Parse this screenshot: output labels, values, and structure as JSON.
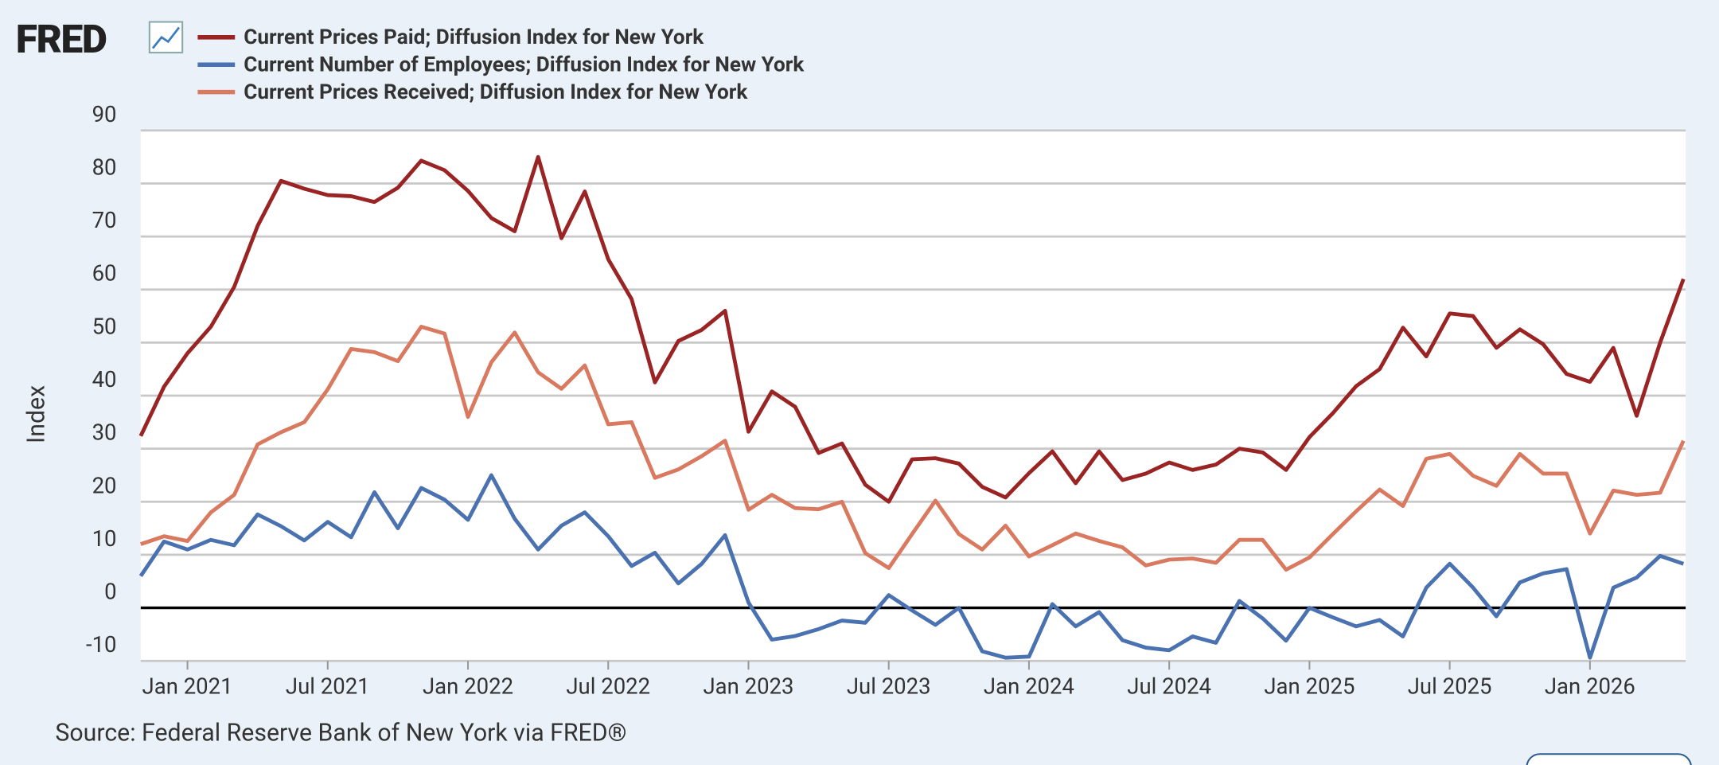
{
  "chart_data": {
    "type": "line",
    "logo": "FRED",
    "ylabel": "Index",
    "source": "Source: Federal Reserve Bank of New York via FRED®",
    "x": [
      "2020-11",
      "2020-12",
      "2021-01",
      "2021-02",
      "2021-03",
      "2021-04",
      "2021-05",
      "2021-06",
      "2021-07",
      "2021-08",
      "2021-09",
      "2021-10",
      "2021-11",
      "2021-12",
      "2022-01",
      "2022-02",
      "2022-03",
      "2022-04",
      "2022-05",
      "2022-06",
      "2022-07",
      "2022-08",
      "2022-09",
      "2022-10",
      "2022-11",
      "2022-12",
      "2023-01",
      "2023-02",
      "2023-03",
      "2023-04",
      "2023-05",
      "2023-06",
      "2023-07",
      "2023-08",
      "2023-09",
      "2023-10",
      "2023-11",
      "2023-12",
      "2024-01",
      "2024-02",
      "2024-03",
      "2024-04",
      "2024-05",
      "2024-06",
      "2024-07",
      "2024-08",
      "2024-09",
      "2024-10",
      "2024-11",
      "2024-12",
      "2025-01",
      "2025-02",
      "2025-03",
      "2025-04",
      "2025-05",
      "2025-06",
      "2025-07",
      "2025-08",
      "2025-09",
      "2025-10",
      "2025-11",
      "2025-12",
      "2026-01",
      "2026-02",
      "2026-03",
      "2026-04",
      "2026-05"
    ],
    "series": [
      {
        "name": "Current Prices Paid; Diffusion Index for New York",
        "color": "#9a2424",
        "values": [
          32.4,
          41.7,
          48,
          53,
          60.5,
          72,
          80.5,
          79,
          77.8,
          77.6,
          76.5,
          79.2,
          84.3,
          82.5,
          78.6,
          73.5,
          71,
          85,
          69.7,
          78.5,
          65.7,
          58.2,
          42.5,
          50.3,
          52.4,
          56,
          33.2,
          40.8,
          37.9,
          29.2,
          31,
          23.2,
          20,
          28,
          28.2,
          27.2,
          22.8,
          20.8,
          25.4,
          29.5,
          23.5,
          29.5,
          24.1,
          25.3,
          27.4,
          26,
          27,
          30,
          29.3,
          26,
          32.2,
          36.7,
          41.8,
          45,
          52.8,
          47.4,
          55.5,
          55,
          49,
          52.5,
          49.7,
          44.1,
          42.6,
          49,
          36.2,
          50,
          62
        ]
      },
      {
        "name": "Current Number of Employees; Diffusion Index for New York",
        "color": "#4a72b0",
        "values": [
          6,
          12.5,
          11,
          12.8,
          11.8,
          17.6,
          15.4,
          12.7,
          16.2,
          13.3,
          21.8,
          15,
          22.6,
          20.4,
          16.6,
          25,
          16.8,
          11,
          15.5,
          18,
          13.5,
          7.9,
          10.4,
          4.6,
          8.3,
          13.7,
          1,
          -6,
          -5.3,
          -4,
          -2.4,
          -2.8,
          2.4,
          -0.5,
          -3.2,
          0,
          -8.2,
          -9.4,
          -9.2,
          0.7,
          -3.5,
          -0.8,
          -6.1,
          -7.5,
          -8,
          -5.4,
          -6.6,
          1.3,
          -2,
          -6.2,
          0,
          -1.8,
          -3.5,
          -2.3,
          -5.4,
          3.8,
          8.3,
          3.8,
          -1.6,
          4.8,
          6.5,
          7.3,
          -9.4,
          3.8,
          5.7,
          9.8,
          8.3
        ]
      },
      {
        "name": "Current Prices Received; Diffusion Index for New York",
        "color": "#d9795f",
        "values": [
          12,
          13.5,
          12.6,
          18,
          21.3,
          30.8,
          33.1,
          35,
          41.2,
          48.8,
          48.2,
          46.5,
          53,
          51.7,
          36,
          46.3,
          51.9,
          44.4,
          41.3,
          45.7,
          34.6,
          35,
          24.5,
          26.1,
          28.6,
          31.5,
          18.5,
          21.3,
          18.8,
          18.6,
          20,
          10.3,
          7.5,
          13.9,
          20.2,
          13.9,
          11,
          15.5,
          9.7,
          11.8,
          14,
          12.6,
          11.4,
          8,
          9.1,
          9.3,
          8.5,
          12.8,
          12.8,
          7.2,
          9.5,
          13.9,
          18.2,
          22.3,
          19.2,
          28.1,
          29,
          24.9,
          23,
          29,
          25.3,
          25.3,
          14,
          22.1,
          21.3,
          21.7,
          31.5
        ]
      }
    ],
    "xticks": [
      {
        "value": "2021-01",
        "label": "Jan 2021"
      },
      {
        "value": "2021-07",
        "label": "Jul 2021"
      },
      {
        "value": "2022-01",
        "label": "Jan 2022"
      },
      {
        "value": "2022-07",
        "label": "Jul 2022"
      },
      {
        "value": "2023-01",
        "label": "Jan 2023"
      },
      {
        "value": "2023-07",
        "label": "Jul 2023"
      },
      {
        "value": "2024-01",
        "label": "Jan 2024"
      },
      {
        "value": "2024-07",
        "label": "Jul 2024"
      },
      {
        "value": "2025-01",
        "label": "Jan 2025"
      },
      {
        "value": "2025-07",
        "label": "Jul 2025"
      },
      {
        "value": "2026-01",
        "label": "Jan 2026"
      }
    ],
    "ylim": [
      -10,
      90
    ],
    "yticks": [
      -10,
      0,
      10,
      20,
      30,
      40,
      50,
      60,
      70,
      80,
      90
    ],
    "grid": true
  }
}
